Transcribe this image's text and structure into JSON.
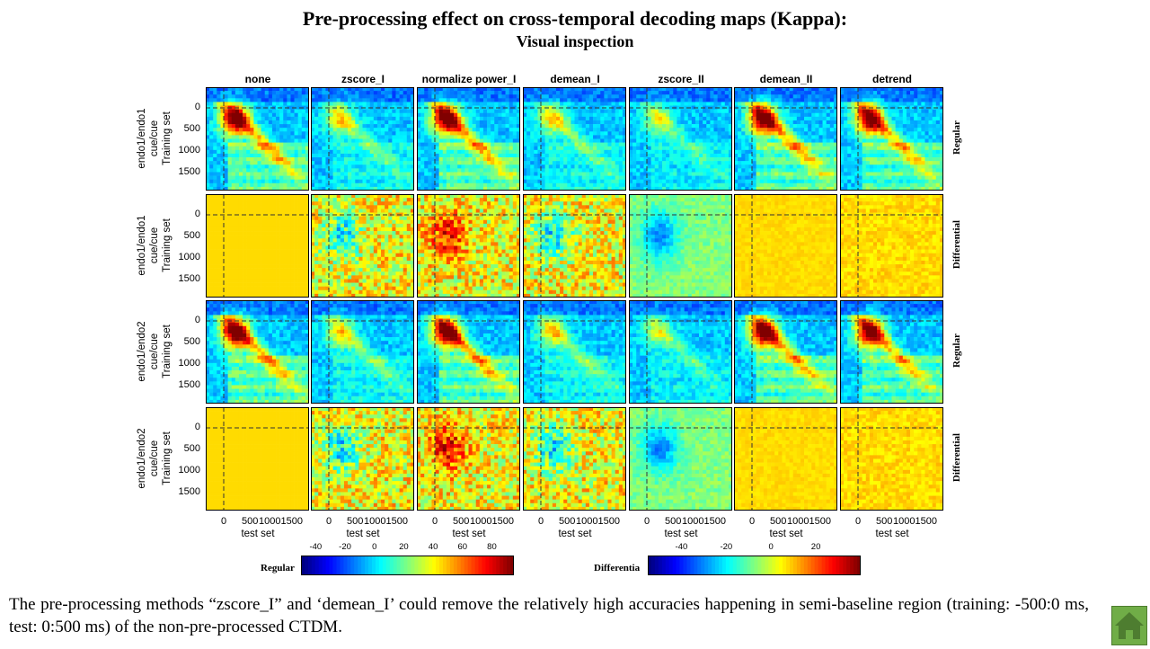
{
  "title": "Pre-processing effect on cross-temporal decoding maps (Kappa):",
  "subtitle": "Visual inspection",
  "chart_data": {
    "type": "heatmap",
    "columns": [
      "none",
      "zscore_I",
      "normalize power_I",
      "demean_I",
      "zscore_II",
      "demean_II",
      "detrend"
    ],
    "rows": [
      {
        "label_lines": [
          "endo1/endo1",
          "cue/cue",
          "Training set"
        ],
        "type": "Regular"
      },
      {
        "label_lines": [
          "endo1/endo1",
          "cue/cue",
          "Training set"
        ],
        "type": "Differential"
      },
      {
        "label_lines": [
          "endo1/endo2",
          "cue/cue",
          "Training set"
        ],
        "type": "Regular"
      },
      {
        "label_lines": [
          "endo1/endo2",
          "cue/cue",
          "Training set"
        ],
        "type": "Differential"
      }
    ],
    "yticks": [
      "0",
      "500",
      "1000",
      "1500"
    ],
    "xticks": [
      "0",
      "500",
      "10001500"
    ],
    "xlabel": "test set",
    "colorbars": [
      {
        "label": "Regular",
        "ticks": [
          "-40",
          "-20",
          "0",
          "20",
          "40",
          "60",
          "80"
        ],
        "range": [
          -50,
          95
        ]
      },
      {
        "label": "Differentia",
        "ticks": [
          "-40",
          "-20",
          "0",
          "20"
        ],
        "range": [
          -55,
          40
        ]
      }
    ],
    "colormap": "jet"
  },
  "caption": "The pre-processing methods “zscore_I” and ‘demean_I’ could remove the relatively high accuracies happening in semi-baseline region (training: -500:0 ms, test: 0:500 ms) of the non-pre-processed CTDM.",
  "nav": {
    "home_icon": "home-icon",
    "color": "#70ad47"
  }
}
